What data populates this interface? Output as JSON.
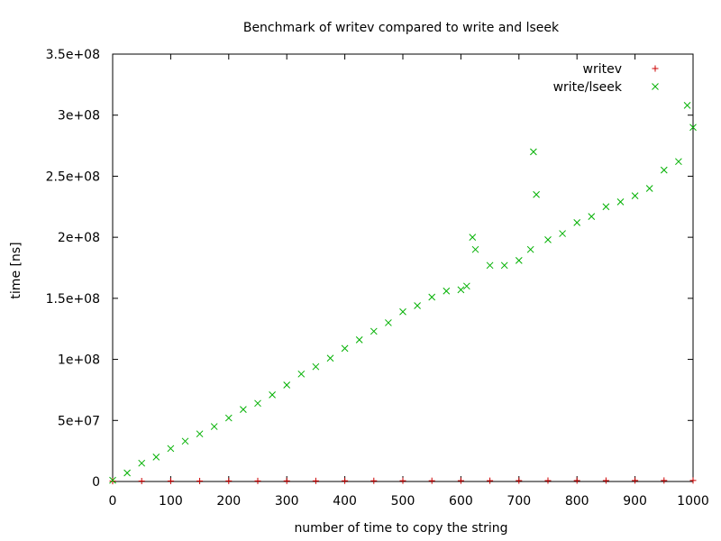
{
  "chart_data": {
    "type": "scatter",
    "title": "Benchmark of writev compared to write and lseek",
    "xlabel": "number of time to copy the string",
    "ylabel": "time [ns]",
    "xlim": [
      0,
      1000
    ],
    "ylim": [
      0,
      350000000
    ],
    "x_ticks": [
      0,
      100,
      200,
      300,
      400,
      500,
      600,
      700,
      800,
      900,
      1000
    ],
    "x_tick_labels": [
      "0",
      "100",
      "200",
      "300",
      "400",
      "500",
      "600",
      "700",
      "800",
      "900",
      "1000"
    ],
    "y_ticks": [
      0,
      50000000,
      100000000,
      150000000,
      200000000,
      250000000,
      300000000,
      350000000
    ],
    "y_tick_labels": [
      "0",
      "5e+07",
      "1e+08",
      "1.5e+08",
      "2e+08",
      "2.5e+08",
      "3e+08",
      "3.5e+08"
    ],
    "grid": false,
    "legend_position": "top-right",
    "series": [
      {
        "name": "writev",
        "marker": "plus",
        "color": "#cc0000",
        "x": [
          0,
          50,
          100,
          150,
          200,
          250,
          300,
          350,
          400,
          450,
          500,
          550,
          600,
          650,
          700,
          750,
          800,
          850,
          900,
          950,
          1000
        ],
        "y": [
          300000,
          350000,
          400000,
          400000,
          450000,
          450000,
          500000,
          500000,
          550000,
          550000,
          600000,
          600000,
          650000,
          650000,
          700000,
          700000,
          750000,
          750000,
          800000,
          800000,
          850000
        ]
      },
      {
        "name": "write/lseek",
        "marker": "cross",
        "color": "#00b000",
        "x": [
          0,
          25,
          50,
          75,
          100,
          125,
          150,
          175,
          200,
          225,
          250,
          275,
          300,
          325,
          350,
          375,
          400,
          425,
          450,
          475,
          500,
          525,
          550,
          575,
          600,
          610,
          620,
          625,
          650,
          675,
          700,
          720,
          725,
          730,
          750,
          775,
          800,
          825,
          850,
          875,
          900,
          925,
          950,
          975,
          990,
          1000
        ],
        "y": [
          1000000,
          7000000,
          15000000,
          20000000,
          27000000,
          33000000,
          39000000,
          45000000,
          52000000,
          59000000,
          64000000,
          71000000,
          79000000,
          88000000,
          94000000,
          101000000,
          109000000,
          116000000,
          123000000,
          130000000,
          139000000,
          144000000,
          151000000,
          156000000,
          157000000,
          160000000,
          200000000,
          190000000,
          177000000,
          177000000,
          181000000,
          190000000,
          270000000,
          235000000,
          198000000,
          203000000,
          212000000,
          217000000,
          225000000,
          229000000,
          234000000,
          240000000,
          255000000,
          262000000,
          308000000,
          290000000
        ]
      }
    ]
  }
}
